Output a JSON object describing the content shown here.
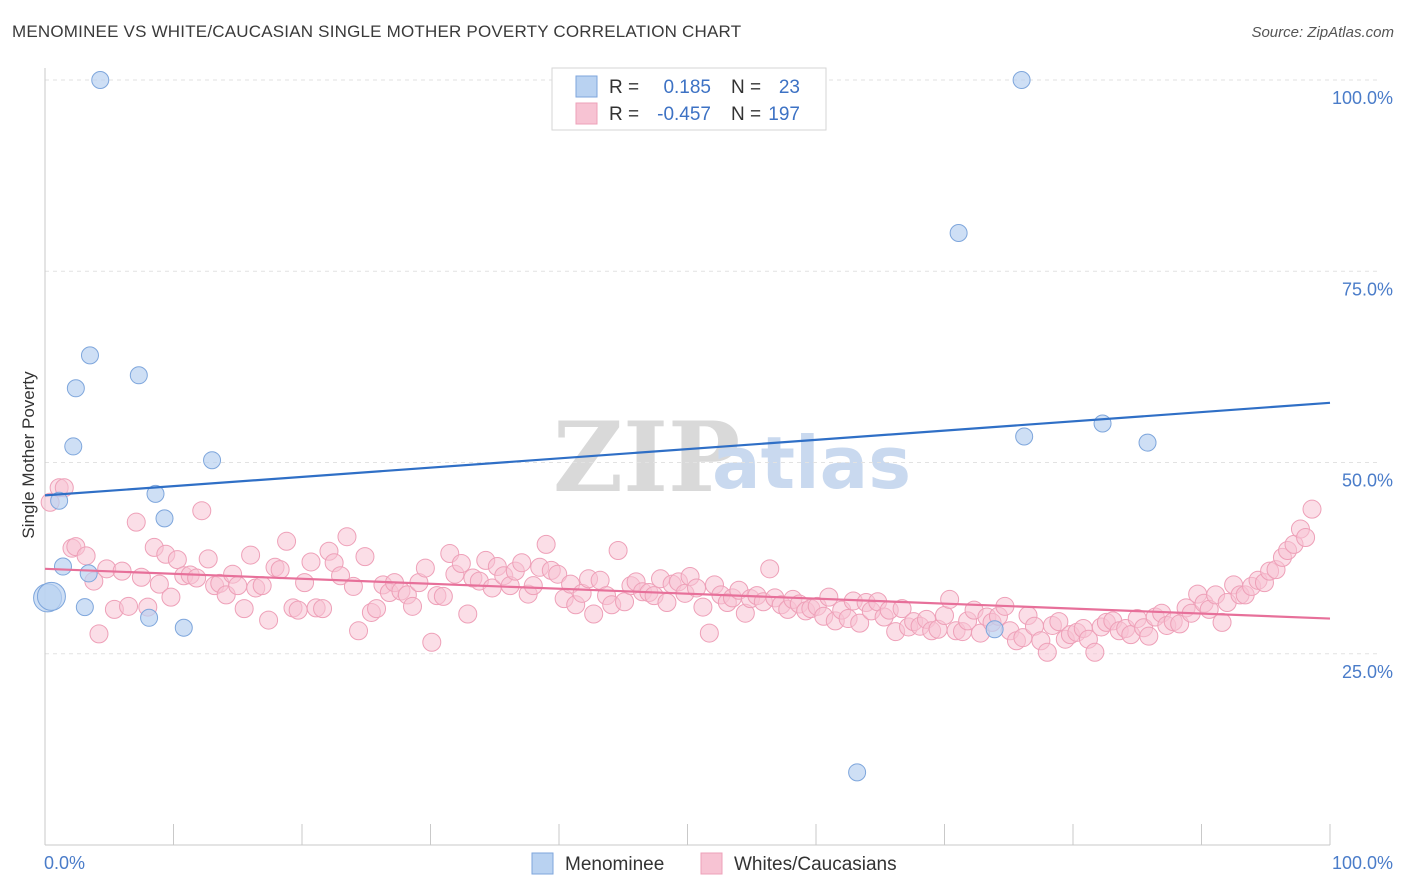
{
  "header": {
    "title": "MENOMINEE VS WHITE/CAUCASIAN SINGLE MOTHER POVERTY CORRELATION CHART",
    "source": "Source: ZipAtlas.com"
  },
  "watermark": {
    "zip": "ZIP",
    "atlas": "atlas"
  },
  "legend_top": [
    {
      "r_label": "R =",
      "r_value": "0.185",
      "n_label": "N =",
      "n_value": "23"
    },
    {
      "r_label": "R =",
      "r_value": "-0.457",
      "n_label": "N =",
      "n_value": "197"
    }
  ],
  "legend_bottom": [
    "Menominee",
    "Whites/Caucasians"
  ],
  "colors": {
    "menominee_fill": "#b9d2f1",
    "menominee_stroke": "#7ea6dc",
    "menominee_line": "#2f6fc6",
    "white_fill": "#f7c3d3",
    "white_stroke": "#eea0b8",
    "white_line": "#e7709a",
    "axis_text": "#4a7cc9",
    "grid": "#e2e2e2"
  },
  "chart_data": {
    "type": "scatter",
    "xlabel": "",
    "ylabel": "Single Mother Poverty",
    "xlim": [
      0,
      100
    ],
    "ylim": [
      0,
      100
    ],
    "x_tick_labels": [
      "0.0%",
      "100.0%"
    ],
    "y_ticks": [
      25,
      50,
      75,
      100
    ],
    "y_tick_labels": [
      "25.0%",
      "50.0%",
      "75.0%",
      "100.0%"
    ],
    "grid": true,
    "legend_position": "top-center",
    "series": [
      {
        "name": "Menominee",
        "R": 0.185,
        "N": 23,
        "trend": {
          "x": [
            0,
            100
          ],
          "y": [
            45.7,
            57.8
          ]
        },
        "points": [
          [
            4.3,
            100
          ],
          [
            76.0,
            100
          ],
          [
            71.1,
            80
          ],
          [
            3.5,
            64
          ],
          [
            7.3,
            61.4
          ],
          [
            2.4,
            59.7
          ],
          [
            2.2,
            52.1
          ],
          [
            13.0,
            50.3
          ],
          [
            82.3,
            55.1
          ],
          [
            76.2,
            53.4
          ],
          [
            85.8,
            52.6
          ],
          [
            8.6,
            45.9
          ],
          [
            1.1,
            45.0
          ],
          [
            9.3,
            42.7
          ],
          [
            1.4,
            36.4
          ],
          [
            3.4,
            35.5
          ],
          [
            0.2,
            32.3
          ],
          [
            0.5,
            32.5
          ],
          [
            3.1,
            31.1
          ],
          [
            8.1,
            29.7
          ],
          [
            10.8,
            28.4
          ],
          [
            73.9,
            28.2
          ],
          [
            63.2,
            9.5
          ]
        ]
      },
      {
        "name": "Whites/Caucasians",
        "R": -0.457,
        "N": 197,
        "trend": {
          "x": [
            0,
            100
          ],
          "y": [
            36.1,
            29.6
          ]
        },
        "points": [
          [
            0.4,
            44.8
          ],
          [
            1.1,
            46.7
          ],
          [
            1.5,
            46.7
          ],
          [
            2.1,
            38.8
          ],
          [
            2.4,
            39.0
          ],
          [
            3.2,
            37.8
          ],
          [
            3.8,
            34.5
          ],
          [
            4.2,
            27.6
          ],
          [
            4.8,
            36.1
          ],
          [
            5.4,
            30.8
          ],
          [
            6.0,
            35.8
          ],
          [
            6.5,
            31.2
          ],
          [
            7.1,
            42.2
          ],
          [
            7.5,
            35.0
          ],
          [
            8.0,
            31.1
          ],
          [
            8.5,
            38.9
          ],
          [
            8.9,
            34.1
          ],
          [
            9.4,
            38.0
          ],
          [
            9.8,
            32.4
          ],
          [
            10.3,
            37.3
          ],
          [
            10.8,
            35.2
          ],
          [
            11.3,
            35.3
          ],
          [
            11.8,
            34.9
          ],
          [
            12.2,
            43.7
          ],
          [
            12.7,
            37.4
          ],
          [
            13.2,
            33.9
          ],
          [
            13.6,
            34.2
          ],
          [
            14.1,
            32.7
          ],
          [
            14.6,
            35.4
          ],
          [
            15.0,
            33.9
          ],
          [
            15.5,
            30.9
          ],
          [
            16.0,
            37.9
          ],
          [
            16.4,
            33.6
          ],
          [
            16.9,
            33.9
          ],
          [
            17.4,
            29.4
          ],
          [
            17.9,
            36.3
          ],
          [
            18.3,
            36.0
          ],
          [
            18.8,
            39.7
          ],
          [
            19.3,
            31.0
          ],
          [
            19.7,
            30.7
          ],
          [
            20.2,
            34.3
          ],
          [
            20.7,
            37.0
          ],
          [
            21.1,
            31.0
          ],
          [
            21.6,
            30.9
          ],
          [
            22.1,
            38.4
          ],
          [
            22.5,
            36.9
          ],
          [
            23.0,
            35.2
          ],
          [
            23.5,
            40.3
          ],
          [
            24.0,
            33.8
          ],
          [
            24.4,
            28.0
          ],
          [
            24.9,
            37.7
          ],
          [
            25.4,
            30.4
          ],
          [
            25.8,
            30.9
          ],
          [
            26.3,
            34.0
          ],
          [
            26.8,
            33.0
          ],
          [
            27.2,
            34.3
          ],
          [
            27.7,
            33.2
          ],
          [
            28.2,
            32.7
          ],
          [
            28.6,
            31.2
          ],
          [
            29.1,
            34.3
          ],
          [
            29.6,
            36.2
          ],
          [
            30.1,
            26.5
          ],
          [
            30.5,
            32.6
          ],
          [
            31.0,
            32.5
          ],
          [
            31.5,
            38.1
          ],
          [
            31.9,
            35.4
          ],
          [
            32.4,
            36.8
          ],
          [
            32.9,
            30.2
          ],
          [
            33.3,
            34.9
          ],
          [
            33.8,
            34.5
          ],
          [
            34.3,
            37.2
          ],
          [
            34.8,
            33.6
          ],
          [
            35.2,
            36.4
          ],
          [
            35.7,
            35.2
          ],
          [
            36.2,
            33.9
          ],
          [
            36.6,
            35.8
          ],
          [
            37.1,
            36.9
          ],
          [
            37.6,
            32.8
          ],
          [
            38.0,
            33.9
          ],
          [
            38.5,
            36.3
          ],
          [
            39.0,
            39.3
          ],
          [
            39.4,
            35.9
          ],
          [
            39.9,
            35.4
          ],
          [
            40.4,
            32.2
          ],
          [
            40.9,
            34.1
          ],
          [
            41.3,
            31.4
          ],
          [
            41.8,
            32.9
          ],
          [
            42.3,
            34.8
          ],
          [
            42.7,
            30.2
          ],
          [
            43.2,
            34.6
          ],
          [
            43.7,
            32.6
          ],
          [
            44.1,
            31.4
          ],
          [
            44.6,
            38.5
          ],
          [
            45.1,
            31.8
          ],
          [
            45.6,
            33.9
          ],
          [
            46.0,
            34.4
          ],
          [
            46.5,
            33.1
          ],
          [
            47.0,
            33.0
          ],
          [
            47.4,
            32.6
          ],
          [
            47.9,
            34.8
          ],
          [
            48.4,
            31.7
          ],
          [
            48.8,
            34.1
          ],
          [
            49.3,
            34.4
          ],
          [
            49.8,
            32.9
          ],
          [
            50.2,
            35.1
          ],
          [
            50.7,
            33.6
          ],
          [
            51.2,
            31.1
          ],
          [
            51.7,
            27.7
          ],
          [
            52.1,
            34.0
          ],
          [
            52.6,
            32.7
          ],
          [
            53.1,
            31.7
          ],
          [
            53.5,
            32.3
          ],
          [
            54.0,
            33.3
          ],
          [
            54.5,
            30.3
          ],
          [
            54.9,
            32.2
          ],
          [
            55.4,
            32.6
          ],
          [
            55.9,
            31.8
          ],
          [
            56.4,
            36.1
          ],
          [
            56.8,
            32.3
          ],
          [
            57.3,
            31.4
          ],
          [
            57.8,
            30.8
          ],
          [
            58.2,
            32.1
          ],
          [
            58.7,
            31.5
          ],
          [
            59.2,
            30.6
          ],
          [
            59.6,
            30.9
          ],
          [
            60.1,
            31.2
          ],
          [
            60.6,
            29.9
          ],
          [
            61.0,
            32.4
          ],
          [
            61.5,
            29.3
          ],
          [
            62.0,
            30.7
          ],
          [
            62.5,
            29.6
          ],
          [
            62.9,
            31.9
          ],
          [
            63.4,
            29.0
          ],
          [
            63.9,
            31.7
          ],
          [
            64.3,
            30.6
          ],
          [
            64.8,
            31.8
          ],
          [
            65.3,
            29.8
          ],
          [
            65.7,
            30.7
          ],
          [
            66.2,
            27.9
          ],
          [
            66.7,
            30.9
          ],
          [
            67.2,
            28.5
          ],
          [
            67.6,
            29.2
          ],
          [
            68.1,
            28.6
          ],
          [
            68.6,
            29.5
          ],
          [
            69.0,
            28.0
          ],
          [
            69.5,
            28.2
          ],
          [
            70.0,
            30.0
          ],
          [
            70.4,
            32.1
          ],
          [
            70.9,
            28.0
          ],
          [
            71.4,
            27.9
          ],
          [
            71.8,
            29.3
          ],
          [
            72.3,
            30.7
          ],
          [
            72.8,
            27.7
          ],
          [
            73.3,
            29.8
          ],
          [
            73.7,
            29.1
          ],
          [
            74.2,
            29.9
          ],
          [
            74.7,
            31.2
          ],
          [
            75.1,
            28.0
          ],
          [
            75.6,
            26.7
          ],
          [
            76.1,
            27.1
          ],
          [
            76.5,
            30.0
          ],
          [
            77.0,
            28.6
          ],
          [
            77.5,
            26.7
          ],
          [
            78.0,
            25.2
          ],
          [
            78.4,
            28.7
          ],
          [
            78.9,
            29.2
          ],
          [
            79.4,
            26.9
          ],
          [
            79.8,
            27.5
          ],
          [
            80.3,
            27.8
          ],
          [
            80.8,
            28.3
          ],
          [
            81.2,
            26.9
          ],
          [
            81.7,
            25.2
          ],
          [
            82.2,
            28.5
          ],
          [
            82.6,
            29.1
          ],
          [
            83.1,
            29.3
          ],
          [
            83.6,
            28.0
          ],
          [
            84.1,
            28.3
          ],
          [
            84.5,
            27.5
          ],
          [
            85.0,
            29.6
          ],
          [
            85.5,
            28.4
          ],
          [
            85.9,
            27.3
          ],
          [
            86.4,
            29.8
          ],
          [
            86.9,
            30.3
          ],
          [
            87.3,
            28.7
          ],
          [
            87.8,
            29.2
          ],
          [
            88.3,
            28.9
          ],
          [
            88.8,
            31.0
          ],
          [
            89.2,
            30.3
          ],
          [
            89.7,
            32.8
          ],
          [
            90.2,
            31.6
          ],
          [
            90.6,
            30.8
          ],
          [
            91.1,
            32.7
          ],
          [
            91.6,
            29.1
          ],
          [
            92.0,
            31.7
          ],
          [
            92.5,
            34.0
          ],
          [
            93.0,
            32.7
          ],
          [
            93.4,
            32.7
          ],
          [
            93.9,
            33.8
          ],
          [
            94.4,
            34.6
          ],
          [
            94.9,
            34.3
          ],
          [
            95.3,
            35.8
          ],
          [
            95.8,
            36.0
          ],
          [
            96.3,
            37.6
          ],
          [
            96.7,
            38.5
          ],
          [
            97.2,
            39.3
          ],
          [
            97.7,
            41.3
          ],
          [
            98.1,
            40.2
          ],
          [
            98.6,
            43.9
          ]
        ]
      }
    ]
  }
}
